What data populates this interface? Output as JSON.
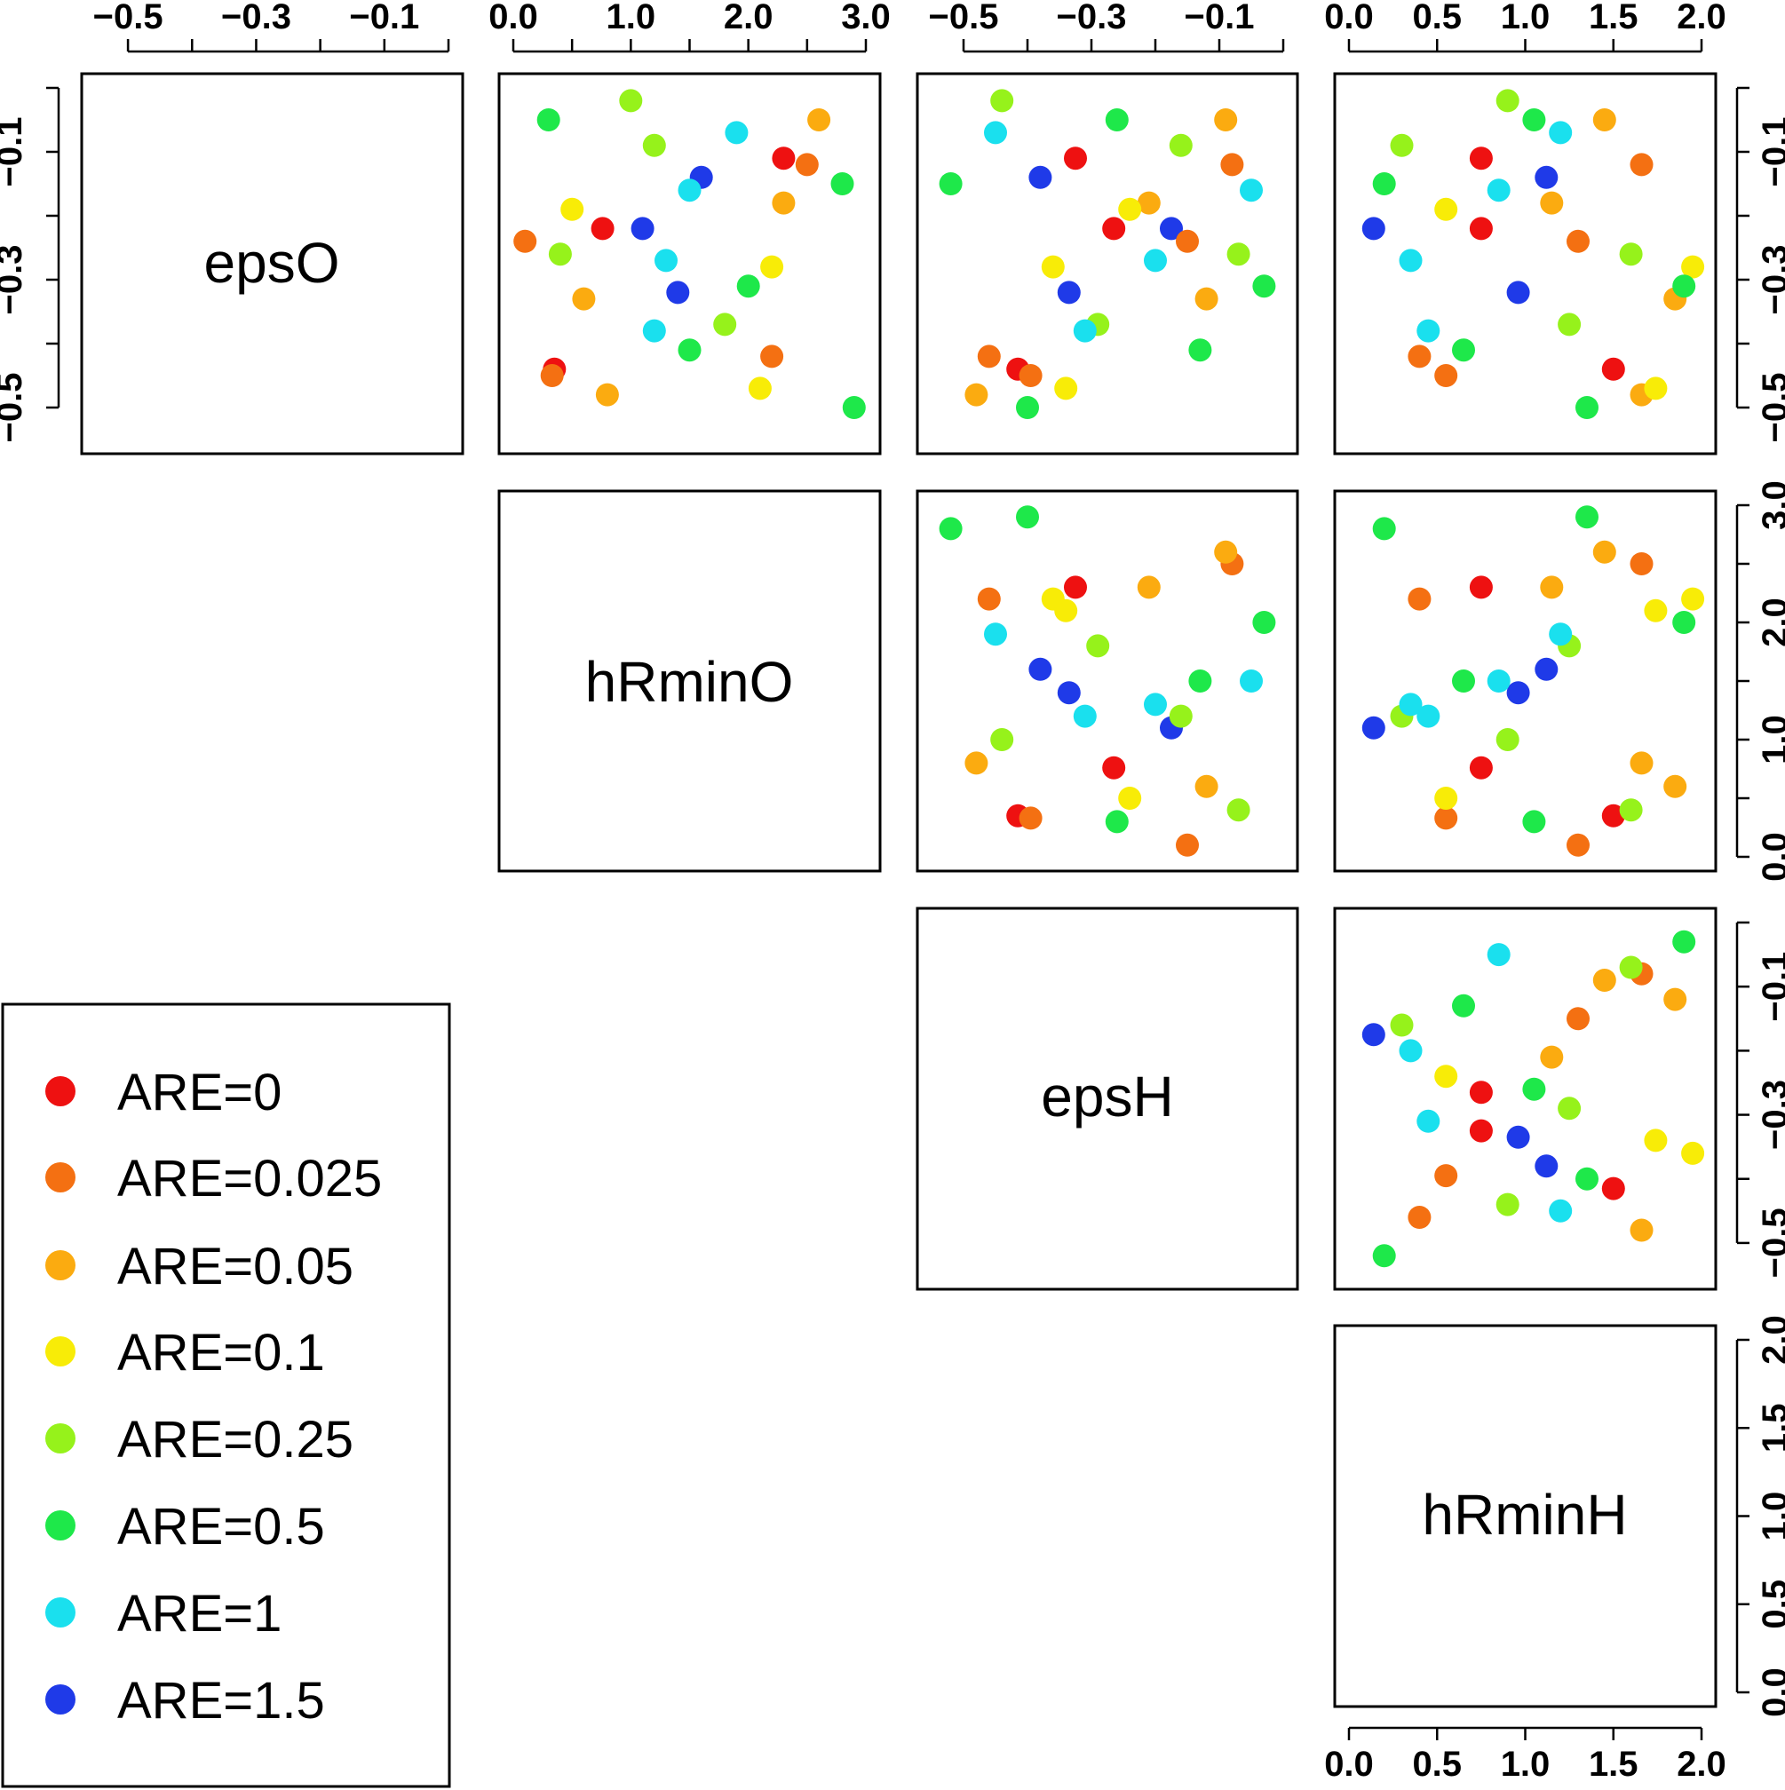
{
  "chart_data": {
    "type": "scatter",
    "title": "",
    "variables": [
      {
        "name": "epsO",
        "range": [
          -0.55,
          -0.0
        ],
        "ticks": [
          -0.5,
          -0.4,
          -0.3,
          -0.2,
          -0.1,
          0.0
        ],
        "tick_labels": [
          "−0.5",
          "",
          "−0.3",
          "",
          "−0.1",
          ""
        ]
      },
      {
        "name": "hRminO",
        "range": [
          0.0,
          3.0
        ],
        "ticks": [
          0.0,
          0.5,
          1.0,
          1.5,
          2.0,
          2.5,
          3.0
        ],
        "tick_labels": [
          "0.0",
          "",
          "1.0",
          "",
          "2.0",
          "",
          "3.0"
        ]
      },
      {
        "name": "epsH",
        "range": [
          -0.55,
          -0.0
        ],
        "ticks": [
          -0.5,
          -0.4,
          -0.3,
          -0.2,
          -0.1,
          0.0
        ],
        "tick_labels": [
          "−0.5",
          "",
          "−0.3",
          "",
          "−0.1",
          ""
        ]
      },
      {
        "name": "hRminH",
        "range": [
          0.0,
          2.0
        ],
        "ticks": [
          0.0,
          0.5,
          1.0,
          1.5,
          2.0
        ],
        "tick_labels": [
          "0.0",
          "0.5",
          "1.0",
          "1.5",
          "2.0"
        ]
      }
    ],
    "axis_labels": {
      "top": [
        [
          "−0.5",
          "−0.3",
          "−0.1"
        ],
        [
          "0.0",
          "1.0",
          "2.0",
          "3.0"
        ],
        [
          "−0.5",
          "−0.3",
          "−0.1"
        ],
        [
          "0.0",
          "0.5",
          "1.0",
          "1.5",
          "2.0"
        ]
      ],
      "left": [
        "−0.1",
        "−0.3",
        "−0.5"
      ],
      "right": [
        [
          "−0.1",
          "−0.3",
          "−0.5"
        ],
        [
          "3.0",
          "2.0",
          "1.0",
          "0.0"
        ],
        [
          "−0.1",
          "−0.3",
          "−0.5"
        ],
        [
          "2.0",
          "1.5",
          "1.0",
          "0.5",
          "0.0"
        ]
      ],
      "bottom": [
        "0.0",
        "0.5",
        "1.0",
        "1.5",
        "2.0"
      ]
    },
    "legend": {
      "placement": "bottom-left",
      "entries": [
        {
          "label": "ARE=0",
          "value": 0,
          "color": "#ee1111"
        },
        {
          "label": "ARE=0.025",
          "value": 0.025,
          "color": "#f47012"
        },
        {
          "label": "ARE=0.05",
          "value": 0.05,
          "color": "#fbab10"
        },
        {
          "label": "ARE=0.1",
          "value": 0.1,
          "color": "#f8ec07"
        },
        {
          "label": "ARE=0.25",
          "value": 0.25,
          "color": "#96f21b"
        },
        {
          "label": "ARE=0.5",
          "value": 0.5,
          "color": "#1ee84a"
        },
        {
          "label": "ARE=1",
          "value": 1,
          "color": "#1ae0ee"
        },
        {
          "label": "ARE=1.5",
          "value": 1.5,
          "color": "#1f3ae8"
        }
      ]
    },
    "samples_are_approximate": true,
    "samples": [
      {
        "epsO": -0.22,
        "hRminO": 0.76,
        "epsH": -0.265,
        "hRminH": 0.75,
        "ARE": 0
      },
      {
        "epsO": -0.44,
        "hRminO": 0.35,
        "epsH": -0.415,
        "hRminH": 1.5,
        "ARE": 0
      },
      {
        "epsO": -0.11,
        "hRminO": 2.3,
        "epsH": -0.325,
        "hRminH": 0.75,
        "ARE": 0
      },
      {
        "epsO": -0.22,
        "hRminO": 1.1,
        "epsH": -0.175,
        "hRminH": 0.14,
        "ARE": 1.5
      },
      {
        "epsO": -0.32,
        "hRminO": 1.4,
        "epsH": -0.335,
        "hRminH": 0.96,
        "ARE": 1.5
      },
      {
        "epsO": -0.14,
        "hRminO": 1.6,
        "epsH": -0.38,
        "hRminH": 1.12,
        "ARE": 1.5
      },
      {
        "epsO": -0.45,
        "hRminO": 0.33,
        "epsH": -0.395,
        "hRminH": 0.55,
        "ARE": 0.025
      },
      {
        "epsO": -0.12,
        "hRminO": 2.5,
        "epsH": -0.08,
        "hRminH": 1.66,
        "ARE": 0.025
      },
      {
        "epsO": -0.24,
        "hRminO": 0.1,
        "epsH": -0.15,
        "hRminH": 1.3,
        "ARE": 0.025
      },
      {
        "epsO": -0.42,
        "hRminO": 2.2,
        "epsH": -0.46,
        "hRminH": 0.4,
        "ARE": 0.025
      },
      {
        "epsO": -0.05,
        "hRminO": 2.6,
        "epsH": -0.09,
        "hRminH": 1.45,
        "ARE": 0.05
      },
      {
        "epsO": -0.18,
        "hRminO": 2.3,
        "epsH": -0.21,
        "hRminH": 1.15,
        "ARE": 0.05
      },
      {
        "epsO": -0.33,
        "hRminO": 0.6,
        "epsH": -0.12,
        "hRminH": 1.85,
        "ARE": 0.05
      },
      {
        "epsO": -0.48,
        "hRminO": 0.8,
        "epsH": -0.48,
        "hRminH": 1.66,
        "ARE": 0.05
      },
      {
        "epsO": -0.19,
        "hRminO": 0.5,
        "epsH": -0.24,
        "hRminH": 0.55,
        "ARE": 0.1
      },
      {
        "epsO": -0.28,
        "hRminO": 2.2,
        "epsH": -0.36,
        "hRminH": 1.95,
        "ARE": 0.1
      },
      {
        "epsO": -0.47,
        "hRminO": 2.1,
        "epsH": -0.34,
        "hRminH": 1.74,
        "ARE": 0.1
      },
      {
        "epsO": -0.09,
        "hRminO": 1.2,
        "epsH": -0.16,
        "hRminH": 0.3,
        "ARE": 0.25
      },
      {
        "epsO": -0.37,
        "hRminO": 1.8,
        "epsH": -0.29,
        "hRminH": 1.25,
        "ARE": 0.25
      },
      {
        "epsO": -0.26,
        "hRminO": 0.4,
        "epsH": -0.07,
        "hRminH": 1.6,
        "ARE": 0.25
      },
      {
        "epsO": -0.02,
        "hRminO": 1.0,
        "epsH": -0.44,
        "hRminH": 0.9,
        "ARE": 0.25
      },
      {
        "epsO": -0.15,
        "hRminO": 2.8,
        "epsH": -0.52,
        "hRminH": 0.2,
        "ARE": 0.5
      },
      {
        "epsO": -0.31,
        "hRminO": 2.0,
        "epsH": -0.03,
        "hRminH": 1.9,
        "ARE": 0.5
      },
      {
        "epsO": -0.05,
        "hRminO": 0.3,
        "epsH": -0.26,
        "hRminH": 1.05,
        "ARE": 0.5
      },
      {
        "epsO": -0.41,
        "hRminO": 1.5,
        "epsH": -0.13,
        "hRminH": 0.65,
        "ARE": 0.5
      },
      {
        "epsO": -0.5,
        "hRminO": 2.9,
        "epsH": -0.4,
        "hRminH": 1.35,
        "ARE": 0.5
      },
      {
        "epsO": -0.27,
        "hRminO": 1.3,
        "epsH": -0.2,
        "hRminH": 0.35,
        "ARE": 1
      },
      {
        "epsO": -0.38,
        "hRminO": 1.2,
        "epsH": -0.31,
        "hRminH": 0.45,
        "ARE": 1
      },
      {
        "epsO": -0.07,
        "hRminO": 1.9,
        "epsH": -0.45,
        "hRminH": 1.2,
        "ARE": 1
      },
      {
        "epsO": -0.16,
        "hRminO": 1.5,
        "epsH": -0.05,
        "hRminH": 0.85,
        "ARE": 1
      }
    ]
  },
  "panels": {
    "diag_labels": [
      "epsO",
      "hRminO",
      "epsH",
      "hRminH"
    ]
  }
}
